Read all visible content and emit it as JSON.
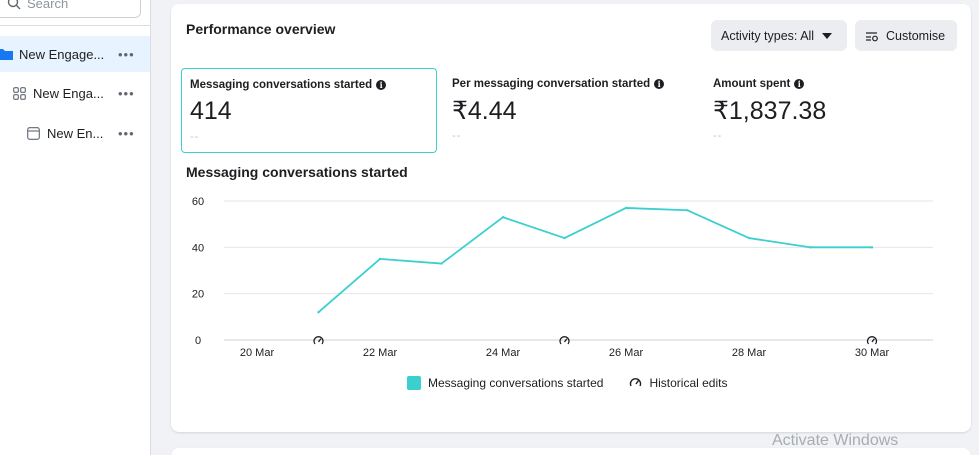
{
  "sidebar": {
    "search_placeholder": "Search",
    "items": [
      {
        "label": "New Engage...",
        "more": "•••",
        "icon": "folder-icon"
      },
      {
        "label": "New Enga...",
        "more": "•••",
        "icon": "adset-grid-icon"
      },
      {
        "label": "New En...",
        "more": "•••",
        "icon": "ad-window-icon"
      }
    ]
  },
  "card": {
    "title": "Performance overview",
    "activity_button": "Activity types: All",
    "customise_button": "Customise",
    "metrics": [
      {
        "label": "Messaging conversations started",
        "value": "414",
        "compare": "--"
      },
      {
        "label": "Per messaging conversation started",
        "value": "₹4.44",
        "compare": "--"
      },
      {
        "label": "Amount spent",
        "value": "₹1,837.38",
        "compare": "--"
      }
    ],
    "chart_title": "Messaging conversations started"
  },
  "chart_data": {
    "type": "line",
    "title": "Messaging conversations started",
    "x": [
      "20 Mar",
      "21 Mar",
      "22 Mar",
      "23 Mar",
      "24 Mar",
      "25 Mar",
      "26 Mar",
      "27 Mar",
      "28 Mar",
      "29 Mar",
      "30 Mar"
    ],
    "x_ticks": [
      "20 Mar",
      "22 Mar",
      "24 Mar",
      "26 Mar",
      "28 Mar",
      "30 Mar"
    ],
    "series": [
      {
        "name": "Messaging conversations started",
        "values": [
          null,
          12,
          35,
          33,
          53,
          44,
          57,
          56,
          44,
          40,
          40
        ],
        "color": "#3ccfcf"
      }
    ],
    "historical_edits_x": [
      "21 Mar",
      "25 Mar",
      "30 Mar"
    ],
    "y_ticks": [
      0,
      20,
      40,
      60
    ],
    "ylim": [
      0,
      60
    ],
    "grid": true,
    "legend": [
      {
        "label": "Messaging conversations started",
        "marker": "teal-square"
      },
      {
        "label": "Historical edits",
        "marker": "historical-edit-icon"
      }
    ],
    "legend_position": "bottom"
  },
  "watermark": "Activate Windows",
  "colors": {
    "accent": "#3ccfcf",
    "sidebar_active": "#e7f3ff",
    "folder": "#1877f2"
  }
}
